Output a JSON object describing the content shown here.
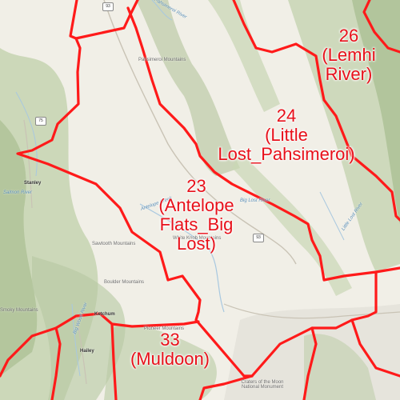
{
  "units": [
    {
      "id": "26",
      "name": "(Lemhi",
      "name2": "River)"
    },
    {
      "id": "24",
      "name": "(Little",
      "name2": "Lost_Pahsimeroi)"
    },
    {
      "id": "23",
      "name": "(Antelope",
      "name2": "Flats_Big",
      "name3": "Lost)"
    },
    {
      "id": "33",
      "name": "(Muldoon)"
    }
  ],
  "places": {
    "pahsimeroi_mountains": "Pahsimeroi Mountains",
    "pahsimeroi_river": "Pahsimeroi River",
    "little_lost_river": "Little Lost River",
    "antelope_creek": "Antelope Creek",
    "big_lost_river": "Big Lost River",
    "white_knob_mountains": "White Knob Mountains",
    "sawtooth_mountains": "Sawtooth Mountains",
    "boulder_mountains": "Boulder Mountains",
    "pioneer_mountains": "Pioneer Mountains",
    "smoky_mountains": "Smoky Mountains",
    "stanley": "Stanley",
    "ketchum": "Ketchum",
    "hailey": "Hailey",
    "craters_monument": "Craters of the Moon National Monument",
    "big_wood_river": "Big Wood River",
    "salmon_river": "Salmon River"
  },
  "shields": {
    "top": "93",
    "left": "75",
    "mid": "93"
  },
  "colors": {
    "boundary": "#ff1a1a",
    "label": "#e8101a",
    "terrain": "#b7c9a3",
    "water": "#a8c8e0"
  }
}
